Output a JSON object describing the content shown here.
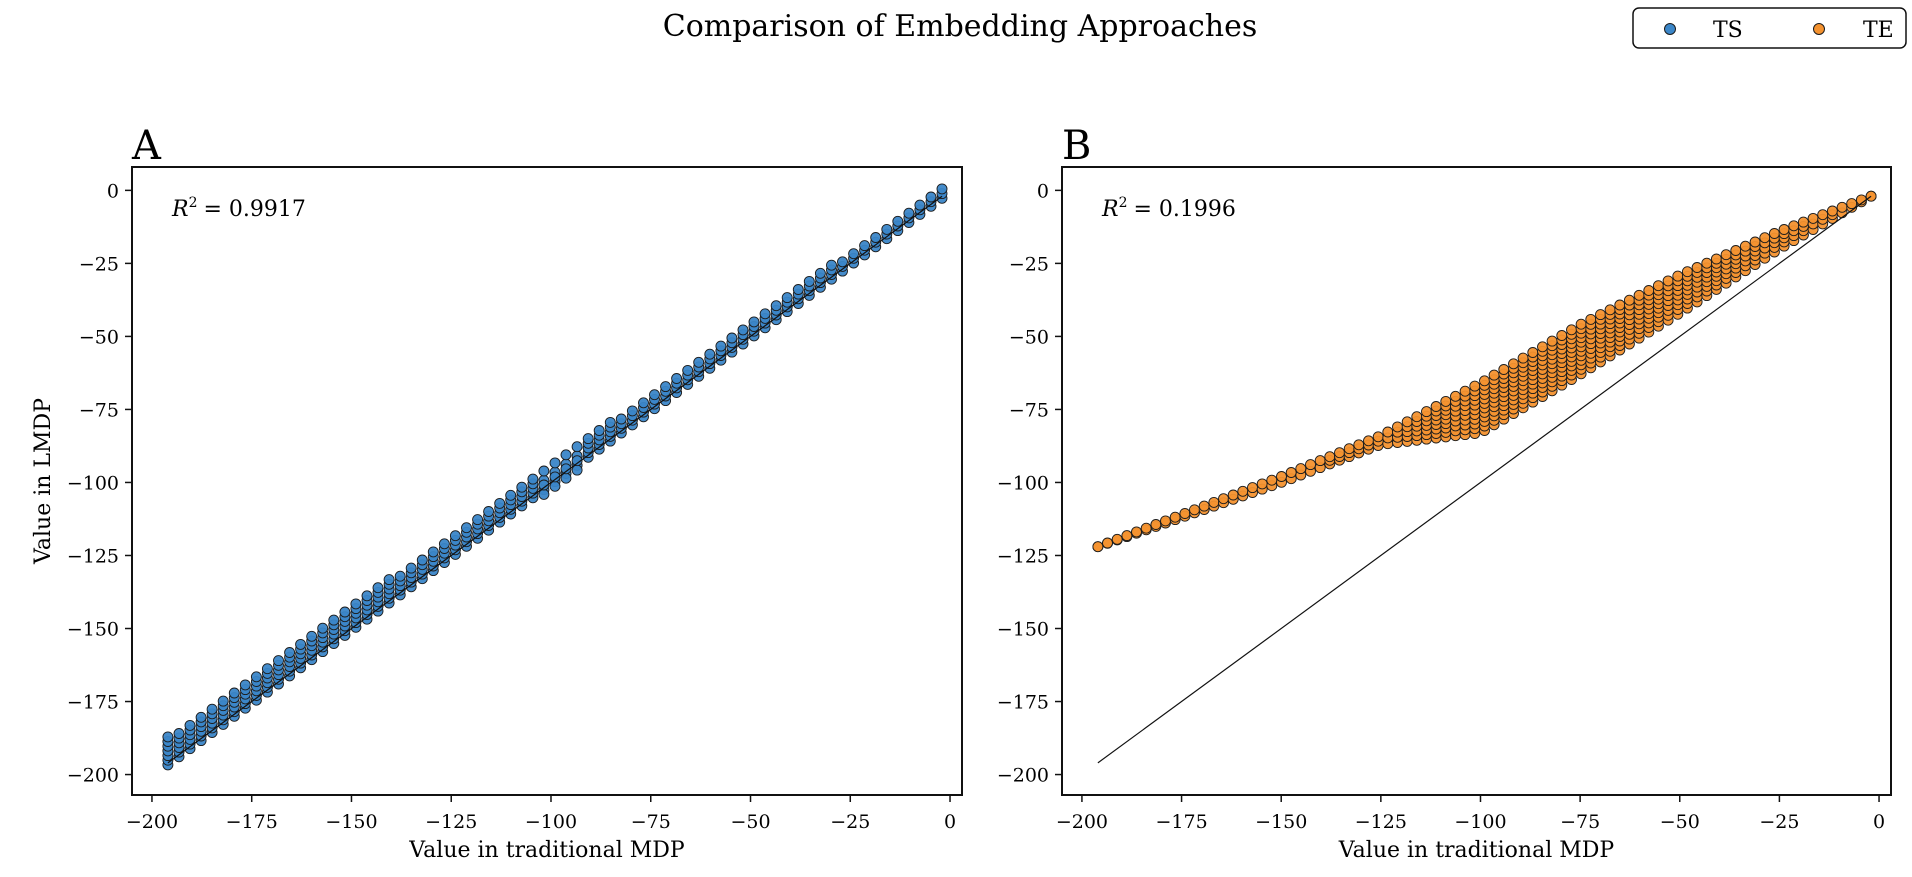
{
  "figure": {
    "title": "Comparison of Embedding Approaches",
    "legend": {
      "placement": "top-right",
      "entries": [
        {
          "label": "TS",
          "color": "#3b86c8"
        },
        {
          "label": "TE",
          "color": "#f4922f"
        }
      ]
    }
  },
  "colors": {
    "ts": "#3b86c8",
    "te": "#f4922f",
    "edge": "#1c1c1c",
    "line": "#111111"
  },
  "chart_data": [
    {
      "type": "scatter",
      "panel": "A",
      "series_name": "TS",
      "title": "",
      "xlabel": "Value in traditional MDP",
      "ylabel": "Value in LMDP",
      "annotation": {
        "r2_label": "R",
        "r2_sup": "2",
        "r2_value": "= 0.9917"
      },
      "xlim": [
        -205,
        3
      ],
      "ylim": [
        -207,
        8
      ],
      "xticks": [
        -200,
        -175,
        -150,
        -125,
        -100,
        -75,
        -50,
        -25,
        0
      ],
      "yticks": [
        0,
        -25,
        -50,
        -75,
        -100,
        -125,
        -150,
        -175,
        -200
      ],
      "xtick_labels": [
        "−200",
        "−175",
        "−150",
        "−125",
        "−100",
        "−75",
        "−50",
        "−25",
        "0"
      ],
      "ytick_labels": [
        "0",
        "−25",
        "−50",
        "−75",
        "−100",
        "−125",
        "−150",
        "−175",
        "−200"
      ],
      "reference_line": [
        [
          -196,
          -196
        ],
        [
          -2,
          -2
        ]
      ],
      "points_description": "band of points along the identity line from about (-196,-194) to (-2,-2), mostly slightly above, with a small dip near x=-100",
      "x_range": [
        -196,
        -2
      ],
      "grid": false
    },
    {
      "type": "scatter",
      "panel": "B",
      "series_name": "TE",
      "title": "",
      "xlabel": "Value in traditional MDP",
      "ylabel": "",
      "annotation": {
        "r2_label": "R",
        "r2_sup": "2",
        "r2_value": "= 0.1996"
      },
      "xlim": [
        -205,
        3
      ],
      "ylim": [
        -207,
        8
      ],
      "xticks": [
        -200,
        -175,
        -150,
        -125,
        -100,
        -75,
        -50,
        -25,
        0
      ],
      "yticks": [
        0,
        -25,
        -50,
        -75,
        -100,
        -125,
        -150,
        -175,
        -200
      ],
      "xtick_labels": [
        "−200",
        "−175",
        "−150",
        "−125",
        "−100",
        "−75",
        "−50",
        "−25",
        "0"
      ],
      "ytick_labels": [
        "0",
        "−25",
        "−50",
        "−75",
        "−100",
        "−125",
        "−150",
        "−175",
        "−200"
      ],
      "reference_line": [
        [
          -196,
          -196
        ],
        [
          -2,
          -2
        ]
      ],
      "upper_edge": [
        [
          -196,
          -122
        ],
        [
          -150,
          -98
        ],
        [
          -125,
          -84
        ],
        [
          -100,
          -66
        ],
        [
          -75,
          -46
        ],
        [
          -50,
          -29
        ],
        [
          -25,
          -14
        ],
        [
          -2,
          -2
        ]
      ],
      "lower_edge": [
        [
          -196,
          -122
        ],
        [
          -150,
          -100
        ],
        [
          -125,
          -87
        ],
        [
          -100,
          -83
        ],
        [
          -75,
          -63
        ],
        [
          -50,
          -42
        ],
        [
          -25,
          -20
        ],
        [
          -2,
          -2
        ]
      ],
      "x_range": [
        -196,
        -2
      ],
      "grid": false
    }
  ]
}
